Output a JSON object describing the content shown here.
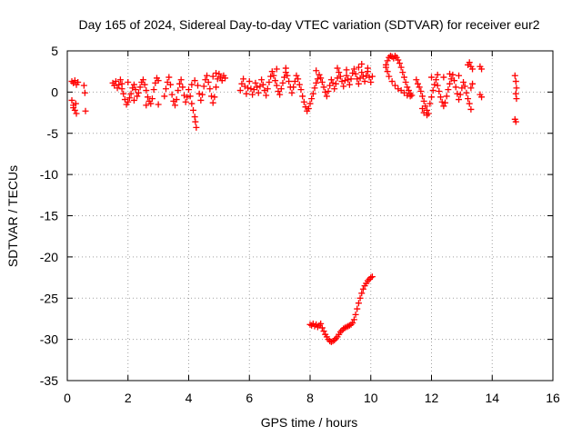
{
  "chart_data": {
    "type": "scatter",
    "title": "Day 165 of 2024, Sidereal Day-to-day VTEC variation (SDTVAR) for receiver eur2",
    "xlabel": "GPS time / hours",
    "ylabel": "SDTVAR / TECUs",
    "xlim": [
      0,
      16
    ],
    "ylim": [
      -35,
      5
    ],
    "xticks": [
      "0",
      "2",
      "4",
      "6",
      "8",
      "10",
      "12",
      "14",
      "16"
    ],
    "yticks": [
      "5",
      "0",
      "-5",
      "-10",
      "-15",
      "-20",
      "-25",
      "-30",
      "-35"
    ],
    "grid": true,
    "legend": "none",
    "marker": "plus",
    "color": "#ff0000",
    "series": [
      {
        "values": [
          [
            0.15,
            1.3
          ],
          [
            0.2,
            1.1
          ],
          [
            0.25,
            1.4
          ],
          [
            0.3,
            0.9
          ],
          [
            0.35,
            1.2
          ],
          [
            0.15,
            -1.0
          ],
          [
            0.2,
            -1.6
          ],
          [
            0.25,
            -2.2
          ],
          [
            0.3,
            -2.6
          ],
          [
            0.2,
            -1.9
          ],
          [
            0.28,
            -1.4
          ],
          [
            0.55,
            0.8
          ],
          [
            0.58,
            -0.1
          ],
          [
            0.6,
            -2.3
          ],
          [
            1.5,
            1.1
          ],
          [
            1.55,
            0.8
          ],
          [
            1.6,
            1.3
          ],
          [
            1.65,
            0.5
          ],
          [
            1.7,
            0.9
          ],
          [
            1.75,
            1.5
          ],
          [
            1.8,
            0.4
          ],
          [
            1.85,
            -0.2
          ],
          [
            1.9,
            -0.9
          ],
          [
            1.95,
            -1.5
          ],
          [
            2.0,
            -1.2
          ],
          [
            2.05,
            -0.7
          ],
          [
            2.1,
            -0.2
          ],
          [
            2.15,
            0.5
          ],
          [
            2.2,
            0.9
          ],
          [
            2.25,
            0.3
          ],
          [
            2.3,
            -0.5
          ],
          [
            2.35,
            -0.1
          ],
          [
            2.4,
            0.6
          ],
          [
            2.45,
            1.2
          ],
          [
            2.5,
            1.5
          ],
          [
            2.55,
            0.9
          ],
          [
            2.6,
            0.2
          ],
          [
            2.65,
            -0.6
          ],
          [
            2.7,
            -1.1
          ],
          [
            2.75,
            -1.4
          ],
          [
            2.8,
            -0.8
          ],
          [
            2.85,
            0.3
          ],
          [
            2.9,
            1.1
          ],
          [
            2.95,
            1.7
          ],
          [
            3.0,
            1.4
          ],
          [
            1.8,
            1.0
          ],
          [
            2.0,
            1.2
          ],
          [
            2.2,
            -1.0
          ],
          [
            2.6,
            -1.6
          ],
          [
            3.0,
            -1.5
          ],
          [
            3.2,
            -0.5
          ],
          [
            3.25,
            0.4
          ],
          [
            3.3,
            1.2
          ],
          [
            3.35,
            1.8
          ],
          [
            3.4,
            0.9
          ],
          [
            3.45,
            -0.3
          ],
          [
            3.5,
            -1.1
          ],
          [
            3.55,
            -1.6
          ],
          [
            3.6,
            -0.9
          ],
          [
            3.65,
            0.2
          ],
          [
            3.7,
            1.0
          ],
          [
            3.75,
            1.5
          ],
          [
            3.8,
            0.6
          ],
          [
            3.85,
            -0.4
          ],
          [
            3.9,
            -1.2
          ],
          [
            3.95,
            -0.6
          ],
          [
            4.0,
            0.3
          ],
          [
            4.05,
            -0.5
          ],
          [
            4.1,
            -1.4
          ],
          [
            4.15,
            -2.2
          ],
          [
            4.2,
            -3.0
          ],
          [
            4.22,
            -3.6
          ],
          [
            4.25,
            -4.3
          ],
          [
            4.1,
            0.9
          ],
          [
            4.2,
            1.4
          ],
          [
            4.3,
            0.8
          ],
          [
            4.35,
            -0.2
          ],
          [
            4.4,
            -1.0
          ],
          [
            4.45,
            -0.3
          ],
          [
            4.5,
            0.7
          ],
          [
            4.55,
            1.5
          ],
          [
            4.6,
            2.0
          ],
          [
            4.65,
            1.2
          ],
          [
            4.7,
            0.4
          ],
          [
            4.75,
            -0.5
          ],
          [
            4.8,
            -1.3
          ],
          [
            4.85,
            -0.6
          ],
          [
            4.9,
            0.6
          ],
          [
            4.95,
            1.6
          ],
          [
            5.0,
            2.2
          ],
          [
            5.05,
            1.8
          ],
          [
            5.1,
            1.4
          ],
          [
            5.15,
            2.0
          ],
          [
            5.2,
            1.7
          ],
          [
            4.8,
            1.9
          ],
          [
            4.9,
            2.3
          ],
          [
            5.7,
            0.2
          ],
          [
            5.75,
            1.0
          ],
          [
            5.8,
            1.6
          ],
          [
            5.85,
            0.7
          ],
          [
            5.9,
            -0.2
          ],
          [
            5.95,
            0.5
          ],
          [
            6.0,
            1.3
          ],
          [
            6.05,
            0.4
          ],
          [
            6.1,
            -0.3
          ],
          [
            6.15,
            0.3
          ],
          [
            6.2,
            1.1
          ],
          [
            6.25,
            0.6
          ],
          [
            6.3,
            -0.1
          ],
          [
            6.35,
            0.7
          ],
          [
            6.4,
            1.5
          ],
          [
            6.45,
            0.9
          ],
          [
            6.5,
            0.2
          ],
          [
            6.55,
            -0.4
          ],
          [
            6.6,
            0.4
          ],
          [
            6.65,
            1.2
          ],
          [
            6.7,
            1.9
          ],
          [
            6.75,
            2.5
          ],
          [
            6.8,
            2.0
          ],
          [
            6.85,
            1.4
          ],
          [
            6.9,
            0.8
          ],
          [
            6.95,
            0.1
          ],
          [
            7.0,
            -0.3
          ],
          [
            7.05,
            0.4
          ],
          [
            7.1,
            1.1
          ],
          [
            7.15,
            1.8
          ],
          [
            7.2,
            2.4
          ],
          [
            7.25,
            2.0
          ],
          [
            7.3,
            1.3
          ],
          [
            7.35,
            0.6
          ],
          [
            7.4,
            -0.1
          ],
          [
            7.45,
            0.6
          ],
          [
            7.5,
            1.3
          ],
          [
            7.55,
            2.0
          ],
          [
            7.6,
            1.6
          ],
          [
            7.65,
            0.9
          ],
          [
            7.7,
            0.3
          ],
          [
            7.75,
            -0.5
          ],
          [
            7.8,
            -1.2
          ],
          [
            7.85,
            -1.8
          ],
          [
            7.9,
            -2.3
          ],
          [
            7.95,
            -2.0
          ],
          [
            8.0,
            -1.4
          ],
          [
            8.05,
            -0.8
          ],
          [
            8.1,
            -0.2
          ],
          [
            8.15,
            0.5
          ],
          [
            8.2,
            1.1
          ],
          [
            8.25,
            1.6
          ],
          [
            8.3,
            2.1
          ],
          [
            8.35,
            1.7
          ],
          [
            8.4,
            1.2
          ],
          [
            8.45,
            0.6
          ],
          [
            8.5,
            0.0
          ],
          [
            8.55,
            -0.5
          ],
          [
            8.6,
            0.1
          ],
          [
            8.65,
            0.8
          ],
          [
            8.7,
            1.5
          ],
          [
            8.75,
            1.1
          ],
          [
            8.8,
            0.4
          ],
          [
            8.85,
            1.0
          ],
          [
            8.9,
            1.7
          ],
          [
            8.95,
            2.4
          ],
          [
            9.0,
            1.9
          ],
          [
            9.05,
            1.3
          ],
          [
            9.1,
            0.7
          ],
          [
            9.15,
            1.4
          ],
          [
            9.2,
            2.0
          ],
          [
            9.25,
            1.5
          ],
          [
            9.3,
            0.9
          ],
          [
            9.35,
            1.6
          ],
          [
            9.4,
            2.3
          ],
          [
            9.45,
            2.8
          ],
          [
            9.5,
            2.2
          ],
          [
            9.55,
            1.6
          ],
          [
            9.6,
            1.0
          ],
          [
            9.65,
            1.7
          ],
          [
            9.7,
            2.4
          ],
          [
            9.75,
            1.9
          ],
          [
            9.8,
            1.3
          ],
          [
            9.85,
            2.0
          ],
          [
            9.9,
            2.5
          ],
          [
            9.95,
            1.8
          ],
          [
            10.0,
            1.2
          ],
          [
            10.05,
            1.9
          ],
          [
            9.6,
            3.0
          ],
          [
            9.7,
            3.4
          ],
          [
            9.9,
            2.9
          ],
          [
            6.9,
            2.8
          ],
          [
            7.2,
            2.9
          ],
          [
            8.2,
            2.6
          ],
          [
            8.9,
            2.9
          ],
          [
            9.2,
            2.7
          ],
          [
            8.0,
            -28.2
          ],
          [
            8.05,
            -28.3
          ],
          [
            8.1,
            -28.1
          ],
          [
            8.15,
            -28.4
          ],
          [
            8.2,
            -28.2
          ],
          [
            8.25,
            -28.5
          ],
          [
            8.3,
            -28.3
          ],
          [
            8.35,
            -28.1
          ],
          [
            8.4,
            -28.6
          ],
          [
            8.45,
            -29.0
          ],
          [
            8.5,
            -29.4
          ],
          [
            8.55,
            -29.7
          ],
          [
            8.6,
            -30.0
          ],
          [
            8.65,
            -30.2
          ],
          [
            8.7,
            -30.3
          ],
          [
            8.75,
            -30.2
          ],
          [
            8.8,
            -30.1
          ],
          [
            8.85,
            -29.9
          ],
          [
            8.9,
            -29.7
          ],
          [
            8.95,
            -29.4
          ],
          [
            9.0,
            -29.1
          ],
          [
            9.05,
            -28.9
          ],
          [
            9.1,
            -28.7
          ],
          [
            9.15,
            -28.6
          ],
          [
            9.2,
            -28.5
          ],
          [
            9.25,
            -28.4
          ],
          [
            9.3,
            -28.3
          ],
          [
            9.35,
            -28.2
          ],
          [
            9.4,
            -28.0
          ],
          [
            9.45,
            -27.6
          ],
          [
            9.5,
            -27.0
          ],
          [
            9.55,
            -26.3
          ],
          [
            9.6,
            -25.6
          ],
          [
            9.65,
            -25.0
          ],
          [
            9.7,
            -24.4
          ],
          [
            9.75,
            -23.9
          ],
          [
            9.8,
            -23.5
          ],
          [
            9.85,
            -23.2
          ],
          [
            9.9,
            -22.9
          ],
          [
            9.95,
            -22.7
          ],
          [
            10.0,
            -22.5
          ],
          [
            10.05,
            -22.4
          ],
          [
            10.5,
            3.3
          ],
          [
            10.55,
            3.8
          ],
          [
            10.6,
            4.2
          ],
          [
            10.65,
            4.4
          ],
          [
            10.7,
            4.3
          ],
          [
            10.75,
            4.1
          ],
          [
            10.8,
            4.4
          ],
          [
            10.85,
            4.2
          ],
          [
            10.9,
            3.9
          ],
          [
            10.95,
            3.5
          ],
          [
            11.0,
            3.0
          ],
          [
            11.05,
            2.4
          ],
          [
            11.1,
            1.8
          ],
          [
            11.15,
            1.2
          ],
          [
            11.2,
            0.6
          ],
          [
            11.25,
            0.2
          ],
          [
            11.3,
            -0.2
          ],
          [
            11.35,
            -0.4
          ],
          [
            11.3,
            -0.5
          ],
          [
            11.2,
            -0.4
          ],
          [
            11.1,
            -0.1
          ],
          [
            11.0,
            0.2
          ],
          [
            10.9,
            0.4
          ],
          [
            10.8,
            0.8
          ],
          [
            10.7,
            1.3
          ],
          [
            10.6,
            1.9
          ],
          [
            10.55,
            2.5
          ],
          [
            10.5,
            3.0
          ],
          [
            11.5,
            1.5
          ],
          [
            11.55,
            1.0
          ],
          [
            11.6,
            0.6
          ],
          [
            11.65,
            0.1
          ],
          [
            11.7,
            -0.5
          ],
          [
            11.75,
            -1.1
          ],
          [
            11.8,
            -1.7
          ],
          [
            11.85,
            -2.2
          ],
          [
            11.9,
            -2.6
          ],
          [
            11.85,
            -2.8
          ],
          [
            11.75,
            -2.5
          ],
          [
            11.7,
            -2.0
          ],
          [
            11.95,
            -1.4
          ],
          [
            12.0,
            -0.6
          ],
          [
            12.05,
            0.2
          ],
          [
            12.1,
            0.9
          ],
          [
            12.15,
            1.5
          ],
          [
            12.2,
            0.8
          ],
          [
            12.25,
            0.1
          ],
          [
            12.3,
            -0.6
          ],
          [
            12.35,
            -1.2
          ],
          [
            12.4,
            -1.7
          ],
          [
            12.45,
            -1.3
          ],
          [
            12.5,
            -0.5
          ],
          [
            12.55,
            0.3
          ],
          [
            12.6,
            1.0
          ],
          [
            12.65,
            1.6
          ],
          [
            12.7,
            2.1
          ],
          [
            12.75,
            1.4
          ],
          [
            12.8,
            0.6
          ],
          [
            12.85,
            -0.2
          ],
          [
            12.9,
            -0.9
          ],
          [
            12.95,
            -0.3
          ],
          [
            13.0,
            0.5
          ],
          [
            13.05,
            1.2
          ],
          [
            13.1,
            0.7
          ],
          [
            13.15,
            -0.1
          ],
          [
            13.2,
            -0.8
          ],
          [
            13.25,
            -1.4
          ],
          [
            13.3,
            -2.1
          ],
          [
            12.4,
            1.8
          ],
          [
            12.6,
            2.2
          ],
          [
            12.9,
            2.0
          ],
          [
            12.0,
            1.8
          ],
          [
            12.2,
            2.1
          ],
          [
            13.2,
            3.3
          ],
          [
            13.25,
            3.6
          ],
          [
            13.3,
            3.1
          ],
          [
            13.35,
            2.8
          ],
          [
            13.3,
            0.5
          ],
          [
            13.35,
            1.0
          ],
          [
            13.6,
            3.1
          ],
          [
            13.65,
            2.8
          ],
          [
            13.6,
            -0.3
          ],
          [
            13.65,
            -0.6
          ],
          [
            14.75,
            2.0
          ],
          [
            14.78,
            1.3
          ],
          [
            14.8,
            0.5
          ],
          [
            14.78,
            -0.2
          ],
          [
            14.8,
            -0.8
          ],
          [
            14.75,
            -3.3
          ],
          [
            14.78,
            -3.6
          ]
        ]
      }
    ]
  }
}
